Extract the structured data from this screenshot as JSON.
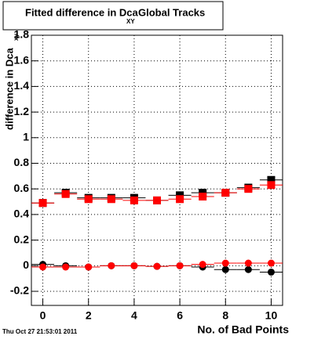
{
  "chart_data": {
    "type": "scatter",
    "title": "Fitted difference in Dca",
    "title_subscript": "XY",
    "title_suffix": "Global Tracks",
    "y_label": "difference in Dca",
    "y_label_subscript": "xy",
    "x_label": "No. of Bad Points",
    "timestamp": "Thu Oct 27 21:53:01 2011",
    "x": [
      0,
      1,
      2,
      3,
      4,
      5,
      6,
      7,
      8,
      9,
      10
    ],
    "x_error": 0.5,
    "series": [
      {
        "name": "black squares",
        "color": "#000000",
        "marker": "square",
        "values": [
          0.49,
          0.57,
          0.53,
          0.53,
          0.53,
          0.51,
          0.55,
          0.57,
          0.57,
          0.61,
          0.67
        ]
      },
      {
        "name": "red squares",
        "color": "#ff0000",
        "marker": "square",
        "values": [
          0.49,
          0.56,
          0.52,
          0.52,
          0.51,
          0.51,
          0.52,
          0.54,
          0.57,
          0.6,
          0.63
        ]
      },
      {
        "name": "black circles",
        "color": "#000000",
        "marker": "circle",
        "values": [
          0.01,
          0.0,
          -0.01,
          0.0,
          0.0,
          -0.005,
          0.0,
          -0.01,
          -0.03,
          -0.03,
          -0.05
        ]
      },
      {
        "name": "red circles",
        "color": "#ff0000",
        "marker": "circle",
        "values": [
          -0.01,
          -0.01,
          -0.01,
          0.0,
          0.0,
          -0.005,
          0.0,
          0.01,
          0.02,
          0.02,
          0.02
        ]
      }
    ],
    "xlim": [
      -0.5,
      10.5
    ],
    "ylim": [
      -0.31,
      1.8
    ],
    "xticks": [
      0,
      2,
      4,
      6,
      8,
      10
    ],
    "yticks": [
      -0.2,
      0,
      0.2,
      0.4,
      0.6,
      0.8,
      1,
      1.2,
      1.4,
      1.6,
      1.8
    ],
    "grid": true
  }
}
